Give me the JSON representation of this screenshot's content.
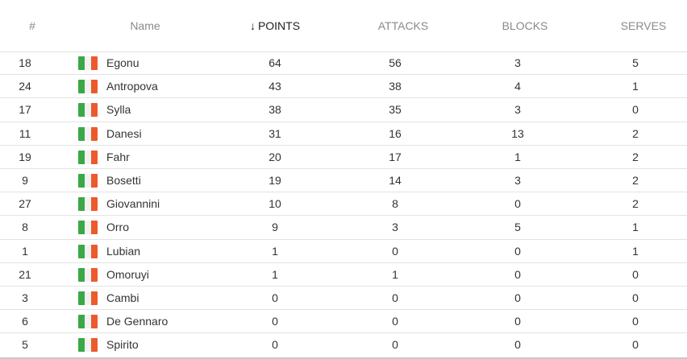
{
  "headers": {
    "num": "#",
    "name": "Name",
    "points": "POINTS",
    "attacks": "ATTACKS",
    "blocks": "BLOCKS",
    "serves": "SERVES",
    "sort_icon": "arrow-down-icon"
  },
  "flag_colors": {
    "green": "#3aa845",
    "white": "#f2f2f2",
    "red": "#ec5a2c"
  },
  "players": [
    {
      "num": "18",
      "name": "Egonu",
      "points": "64",
      "attacks": "56",
      "blocks": "3",
      "serves": "5"
    },
    {
      "num": "24",
      "name": "Antropova",
      "points": "43",
      "attacks": "38",
      "blocks": "4",
      "serves": "1"
    },
    {
      "num": "17",
      "name": "Sylla",
      "points": "38",
      "attacks": "35",
      "blocks": "3",
      "serves": "0"
    },
    {
      "num": "11",
      "name": "Danesi",
      "points": "31",
      "attacks": "16",
      "blocks": "13",
      "serves": "2"
    },
    {
      "num": "19",
      "name": "Fahr",
      "points": "20",
      "attacks": "17",
      "blocks": "1",
      "serves": "2"
    },
    {
      "num": "9",
      "name": "Bosetti",
      "points": "19",
      "attacks": "14",
      "blocks": "3",
      "serves": "2"
    },
    {
      "num": "27",
      "name": "Giovannini",
      "points": "10",
      "attacks": "8",
      "blocks": "0",
      "serves": "2"
    },
    {
      "num": "8",
      "name": "Orro",
      "points": "9",
      "attacks": "3",
      "blocks": "5",
      "serves": "1"
    },
    {
      "num": "1",
      "name": "Lubian",
      "points": "1",
      "attacks": "0",
      "blocks": "0",
      "serves": "1"
    },
    {
      "num": "21",
      "name": "Omoruyi",
      "points": "1",
      "attacks": "1",
      "blocks": "0",
      "serves": "0"
    },
    {
      "num": "3",
      "name": "Cambi",
      "points": "0",
      "attacks": "0",
      "blocks": "0",
      "serves": "0"
    },
    {
      "num": "6",
      "name": "De Gennaro",
      "points": "0",
      "attacks": "0",
      "blocks": "0",
      "serves": "0"
    },
    {
      "num": "5",
      "name": "Spirito",
      "points": "0",
      "attacks": "0",
      "blocks": "0",
      "serves": "0"
    }
  ]
}
